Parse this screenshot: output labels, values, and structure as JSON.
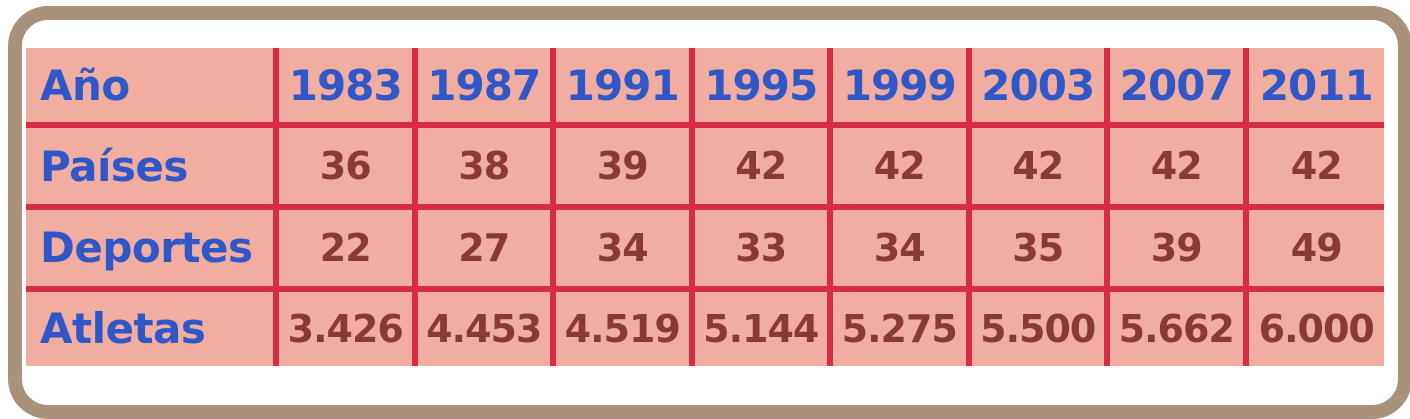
{
  "colors": {
    "frame": "#a8937a",
    "cell_background": "#f1ada0",
    "grid_lines": "#d82b48",
    "header_text": "#2f57c8",
    "value_text": "#8a3a32"
  },
  "chart_data": {
    "type": "table",
    "row_labels": [
      "Año",
      "Países",
      "Deportes",
      "Atletas"
    ],
    "columns": [
      "1983",
      "1987",
      "1991",
      "1995",
      "1999",
      "2003",
      "2007",
      "2011"
    ],
    "rows": [
      {
        "label": "Países",
        "values": [
          "36",
          "38",
          "39",
          "42",
          "42",
          "42",
          "42",
          "42"
        ]
      },
      {
        "label": "Deportes",
        "values": [
          "22",
          "27",
          "34",
          "33",
          "34",
          "35",
          "39",
          "49"
        ]
      },
      {
        "label": "Atletas",
        "values": [
          "3.426",
          "4.453",
          "4.519",
          "5.144",
          "5.275",
          "5.500",
          "5.662",
          "6.000"
        ]
      }
    ]
  }
}
